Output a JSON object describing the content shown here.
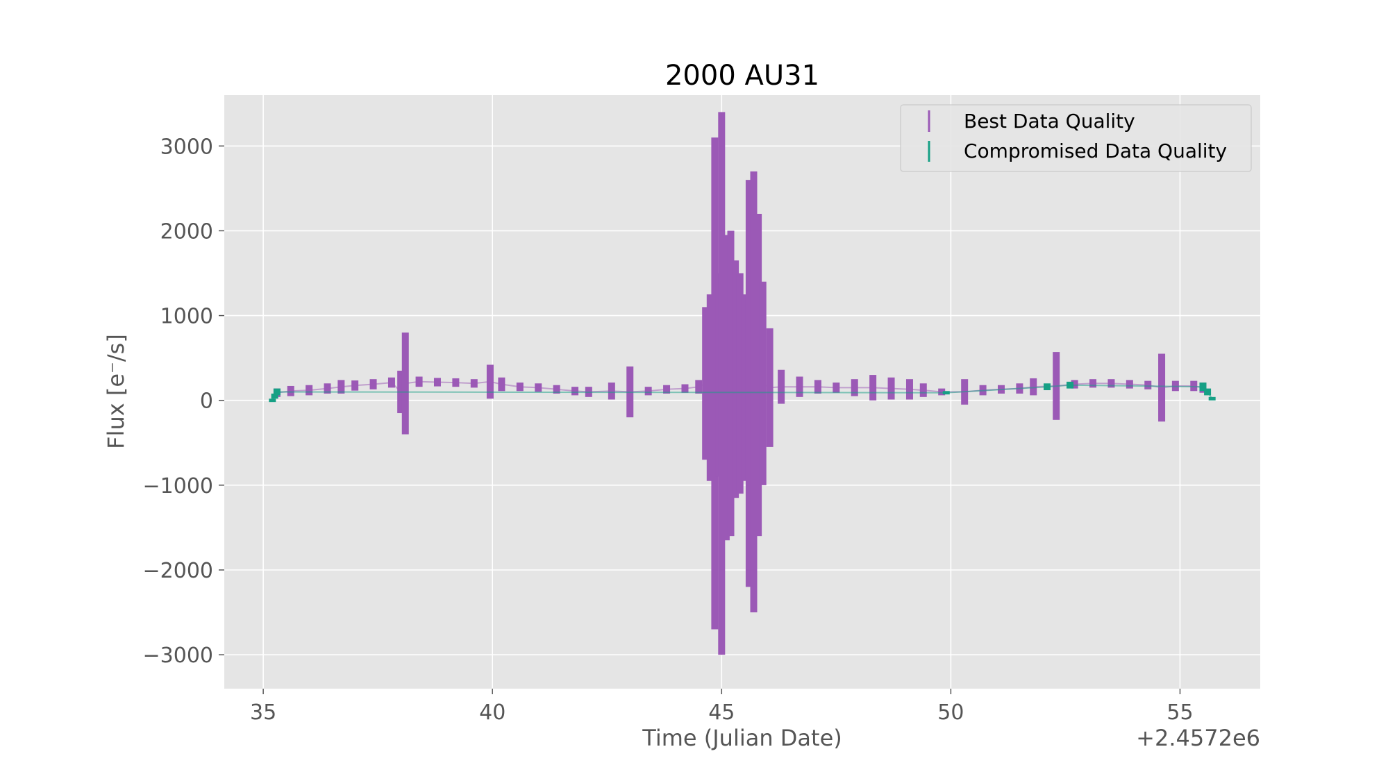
{
  "chart_data": {
    "type": "scatter",
    "title": "2000 AU31",
    "xlabel": "Time (Julian Date)",
    "ylabel": "Flux [e⁻/s]",
    "x_offset_label": "+2.4572e6",
    "xlim": [
      34.15,
      56.75
    ],
    "ylim": [
      -3400,
      3600
    ],
    "xticks": [
      35,
      40,
      45,
      50,
      55
    ],
    "xtick_labels": [
      "35",
      "40",
      "45",
      "50",
      "55"
    ],
    "yticks": [
      -3000,
      -2000,
      -1000,
      0,
      1000,
      2000,
      3000
    ],
    "ytick_labels": [
      "−3000",
      "−2000",
      "−1000",
      "0",
      "1000",
      "2000",
      "3000"
    ],
    "grid": true,
    "legend_position": "top-right",
    "colors": {
      "best": "#9b59b6",
      "compromised": "#16a085",
      "plot_background": "#e5e5e5",
      "grid": "#ffffff"
    },
    "series": [
      {
        "name": "Best Data Quality",
        "style": "errorbar",
        "points": [
          {
            "x": 35.3,
            "y": 90,
            "err": 50
          },
          {
            "x": 35.6,
            "y": 110,
            "err": 60
          },
          {
            "x": 36.0,
            "y": 120,
            "err": 60
          },
          {
            "x": 36.4,
            "y": 140,
            "err": 60
          },
          {
            "x": 36.7,
            "y": 160,
            "err": 80
          },
          {
            "x": 37.0,
            "y": 175,
            "err": 60
          },
          {
            "x": 37.4,
            "y": 190,
            "err": 60
          },
          {
            "x": 37.8,
            "y": 210,
            "err": 60
          },
          {
            "x": 38.0,
            "y": 100,
            "err": 250
          },
          {
            "x": 38.1,
            "y": 200,
            "err": 600
          },
          {
            "x": 38.4,
            "y": 220,
            "err": 60
          },
          {
            "x": 38.8,
            "y": 215,
            "err": 50
          },
          {
            "x": 39.2,
            "y": 210,
            "err": 50
          },
          {
            "x": 39.6,
            "y": 200,
            "err": 50
          },
          {
            "x": 39.95,
            "y": 220,
            "err": 200
          },
          {
            "x": 40.2,
            "y": 190,
            "err": 80
          },
          {
            "x": 40.6,
            "y": 160,
            "err": 50
          },
          {
            "x": 41.0,
            "y": 150,
            "err": 50
          },
          {
            "x": 41.4,
            "y": 130,
            "err": 50
          },
          {
            "x": 41.8,
            "y": 110,
            "err": 50
          },
          {
            "x": 42.1,
            "y": 100,
            "err": 60
          },
          {
            "x": 42.6,
            "y": 110,
            "err": 100
          },
          {
            "x": 43.0,
            "y": 100,
            "err": 300
          },
          {
            "x": 43.4,
            "y": 110,
            "err": 50
          },
          {
            "x": 43.8,
            "y": 130,
            "err": 50
          },
          {
            "x": 44.2,
            "y": 140,
            "err": 50
          },
          {
            "x": 44.5,
            "y": 160,
            "err": 80
          },
          {
            "x": 44.65,
            "y": 200,
            "err": 900
          },
          {
            "x": 44.75,
            "y": 150,
            "err": 1100
          },
          {
            "x": 44.85,
            "y": 200,
            "err": 2900
          },
          {
            "x": 44.95,
            "y": 300,
            "err": 1200
          },
          {
            "x": 45.0,
            "y": 200,
            "err": 3200
          },
          {
            "x": 45.1,
            "y": 150,
            "err": 1800
          },
          {
            "x": 45.2,
            "y": 200,
            "err": 1800
          },
          {
            "x": 45.3,
            "y": 250,
            "err": 1400
          },
          {
            "x": 45.4,
            "y": 200,
            "err": 1300
          },
          {
            "x": 45.5,
            "y": 150,
            "err": 1100
          },
          {
            "x": 45.6,
            "y": 200,
            "err": 2400
          },
          {
            "x": 45.7,
            "y": 100,
            "err": 2600
          },
          {
            "x": 45.8,
            "y": 300,
            "err": 1900
          },
          {
            "x": 45.9,
            "y": 200,
            "err": 1200
          },
          {
            "x": 46.05,
            "y": 150,
            "err": 700
          },
          {
            "x": 46.3,
            "y": 160,
            "err": 200
          },
          {
            "x": 46.7,
            "y": 160,
            "err": 120
          },
          {
            "x": 47.1,
            "y": 160,
            "err": 80
          },
          {
            "x": 47.5,
            "y": 150,
            "err": 60
          },
          {
            "x": 47.9,
            "y": 150,
            "err": 100
          },
          {
            "x": 48.3,
            "y": 150,
            "err": 150
          },
          {
            "x": 48.7,
            "y": 140,
            "err": 130
          },
          {
            "x": 49.1,
            "y": 130,
            "err": 120
          },
          {
            "x": 49.4,
            "y": 120,
            "err": 80
          },
          {
            "x": 49.8,
            "y": 100,
            "err": 40
          },
          {
            "x": 50.3,
            "y": 100,
            "err": 150
          },
          {
            "x": 50.7,
            "y": 120,
            "err": 60
          },
          {
            "x": 51.1,
            "y": 130,
            "err": 50
          },
          {
            "x": 51.5,
            "y": 140,
            "err": 60
          },
          {
            "x": 51.8,
            "y": 160,
            "err": 100
          },
          {
            "x": 52.3,
            "y": 170,
            "err": 400
          },
          {
            "x": 52.7,
            "y": 190,
            "err": 50
          },
          {
            "x": 53.1,
            "y": 200,
            "err": 50
          },
          {
            "x": 53.5,
            "y": 200,
            "err": 50
          },
          {
            "x": 53.9,
            "y": 190,
            "err": 50
          },
          {
            "x": 54.3,
            "y": 180,
            "err": 50
          },
          {
            "x": 54.6,
            "y": 150,
            "err": 400
          },
          {
            "x": 54.9,
            "y": 170,
            "err": 60
          },
          {
            "x": 55.3,
            "y": 170,
            "err": 60
          },
          {
            "x": 55.5,
            "y": 150,
            "err": 60
          }
        ]
      },
      {
        "name": "Compromised Data Quality",
        "style": "errorbar",
        "points": [
          {
            "x": 35.2,
            "y": 0,
            "err": 20
          },
          {
            "x": 35.25,
            "y": 50,
            "err": 30
          },
          {
            "x": 35.3,
            "y": 100,
            "err": 40
          },
          {
            "x": 49.9,
            "y": 90,
            "err": 20
          },
          {
            "x": 52.1,
            "y": 160,
            "err": 40
          },
          {
            "x": 52.6,
            "y": 180,
            "err": 40
          },
          {
            "x": 55.5,
            "y": 160,
            "err": 50
          },
          {
            "x": 55.6,
            "y": 100,
            "err": 40
          },
          {
            "x": 55.7,
            "y": 20,
            "err": 20
          }
        ]
      }
    ]
  }
}
